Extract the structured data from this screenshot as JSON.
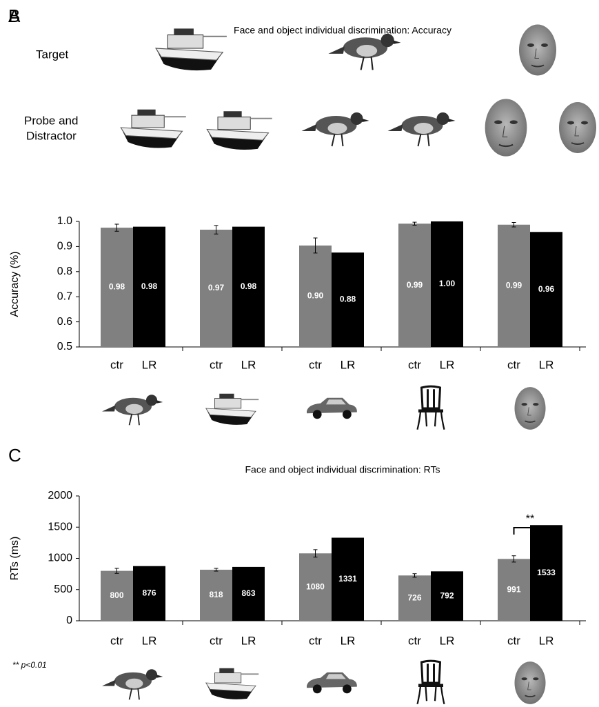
{
  "panel_a": {
    "label": "A",
    "rows": [
      "Target",
      [
        "Probe and",
        "Distractor"
      ]
    ]
  },
  "chart_data": [
    {
      "type": "bar",
      "label": "B",
      "title": "Face and object individual discrimination: Accuracy",
      "ylabel": "Accuracy (%)",
      "categories": [
        null,
        null,
        null,
        null,
        null
      ],
      "ylim": [
        0.5,
        1.0
      ],
      "yticks": [
        0.5,
        0.6,
        0.7,
        0.8,
        0.9,
        {
          "value": 1.0,
          "label": "1.0"
        }
      ],
      "series": [
        {
          "name": "ctr",
          "color": "#808080",
          "values": [
            0.975,
            0.967,
            0.904,
            0.991,
            0.987
          ],
          "errors": [
            0.014,
            0.017,
            0.03,
            0.006,
            0.009
          ],
          "value_labels": [
            "0.98",
            "0.97",
            "0.90",
            "0.99",
            "0.99"
          ]
        },
        {
          "name": "LR",
          "color": "#000000",
          "values": [
            0.979,
            0.979,
            0.876,
            1.0,
            0.958
          ],
          "value_labels": [
            "0.98",
            "0.98",
            "0.88",
            "1.00",
            "0.96"
          ]
        }
      ]
    },
    {
      "type": "bar",
      "label": "C",
      "title": "Face and object individual discrimination: RTs",
      "ylabel": "RTs (ms)",
      "categories": [
        null,
        null,
        null,
        null,
        null
      ],
      "ylim": [
        0,
        2000
      ],
      "yticks": [
        0,
        500,
        1000,
        1500,
        2000
      ],
      "series": [
        {
          "name": "ctr",
          "color": "#808080",
          "values": [
            800,
            818,
            1080,
            726,
            991
          ],
          "errors": [
            40,
            22,
            60,
            28,
            50
          ]
        },
        {
          "name": "LR",
          "color": "#000000",
          "values": [
            876,
            863,
            1331,
            792,
            1533
          ]
        }
      ],
      "annotations": [
        "**",
        "** p<0.01"
      ]
    }
  ]
}
